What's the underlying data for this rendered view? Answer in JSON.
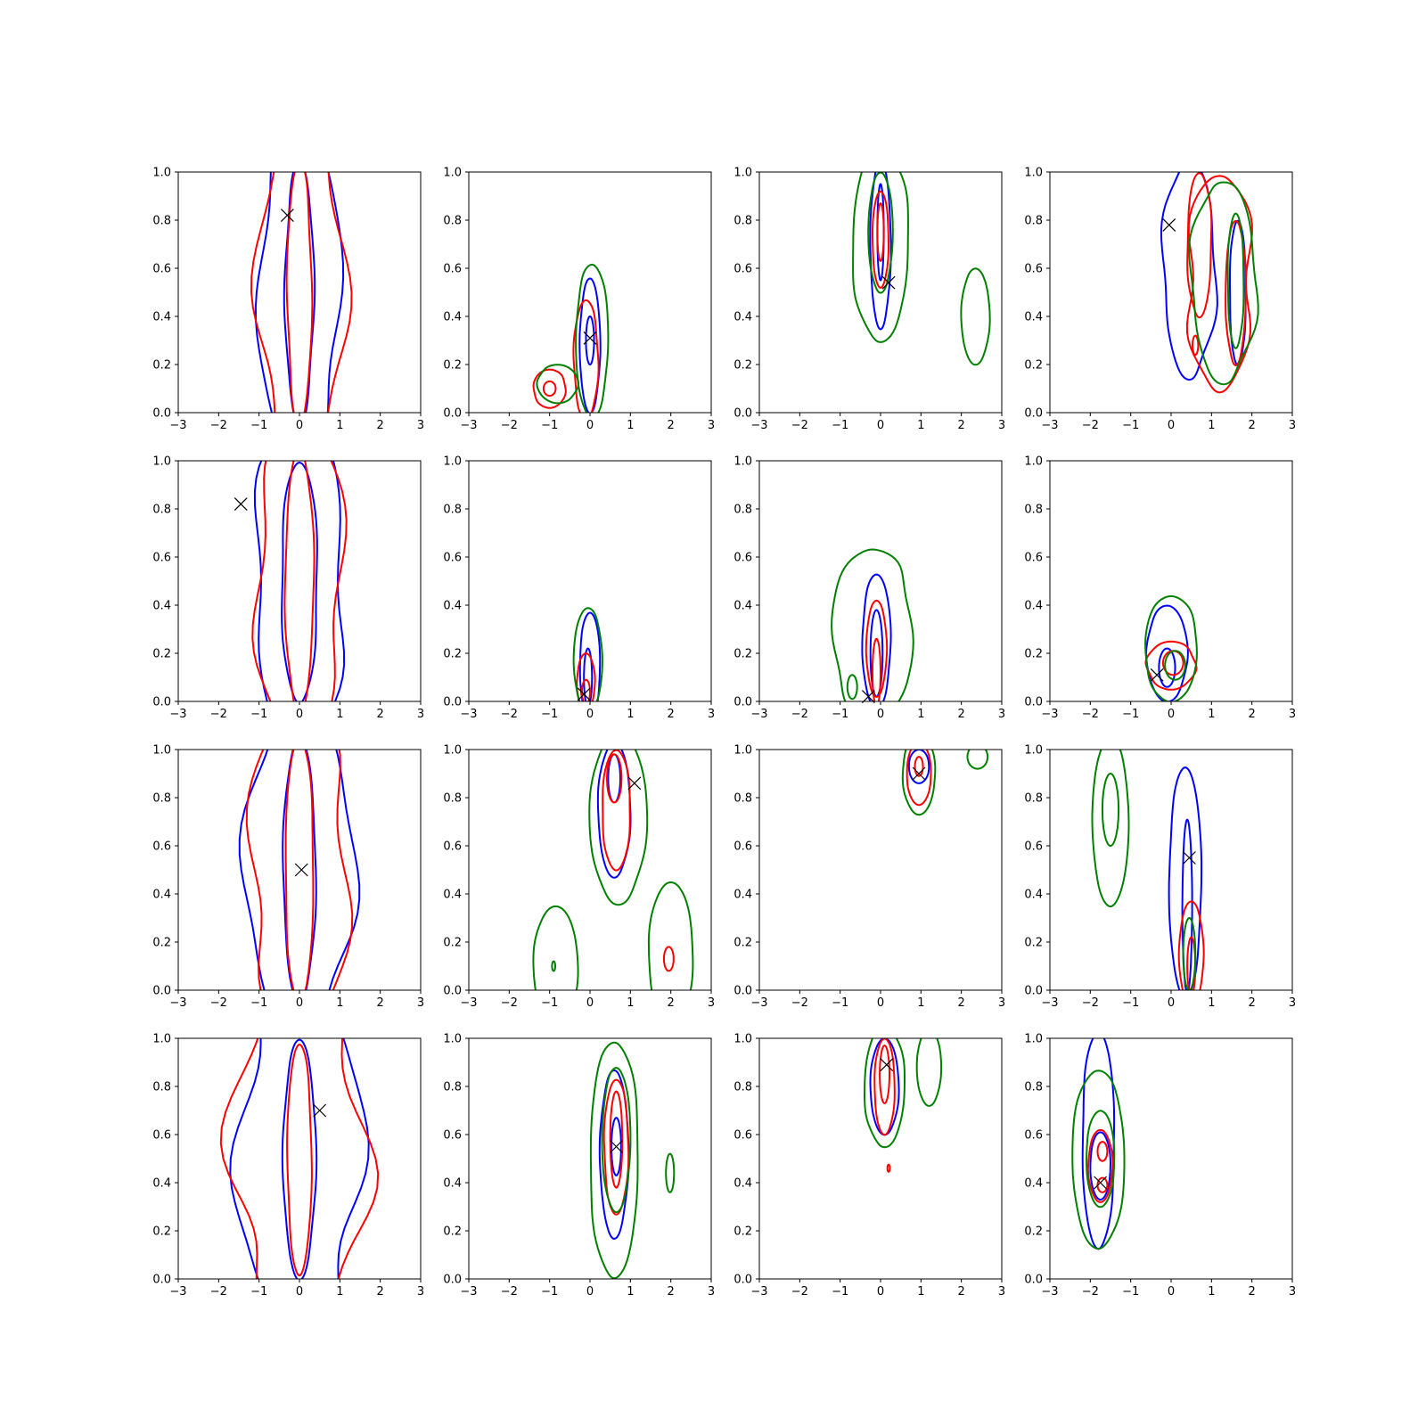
{
  "chart_data": {
    "type": "contour",
    "grid": false,
    "rows": 4,
    "cols": 4,
    "xlim": [
      -3,
      3
    ],
    "ylim": [
      0,
      1
    ],
    "xticks": [
      -3,
      -2,
      -1,
      0,
      1,
      2,
      3
    ],
    "yticks": [
      0.0,
      0.2,
      0.4,
      0.6,
      0.8,
      1.0
    ],
    "xtick_labels": [
      "−3",
      "−2",
      "−1",
      "0",
      "1",
      "2",
      "3"
    ],
    "ytick_labels": [
      "0.0",
      "0.2",
      "0.4",
      "0.6",
      "0.8",
      "1.0"
    ],
    "colors": {
      "blue": "#0000ff",
      "red": "#ff0000",
      "green": "#008000",
      "marker": "#000000"
    },
    "marker_symbol": "x",
    "panels": [
      {
        "row": 0,
        "col": 0,
        "marker": [
          -0.3,
          0.82
        ],
        "contours": [
          {
            "color": "blue",
            "cx": 0.0,
            "cy": 0.5,
            "rx": 1.0,
            "ry": 0.7,
            "wobble": 0.1
          },
          {
            "color": "blue",
            "cx": 0.0,
            "cy": 0.5,
            "rx": 0.35,
            "ry": 0.55,
            "wobble": 0.06
          },
          {
            "color": "red",
            "cx": 0.05,
            "cy": 0.5,
            "rx": 1.05,
            "ry": 0.72,
            "wobble": 0.12
          },
          {
            "color": "red",
            "cx": 0.0,
            "cy": 0.5,
            "rx": 0.3,
            "ry": 0.55,
            "wobble": 0.06
          }
        ]
      },
      {
        "row": 0,
        "col": 1,
        "marker": [
          0.0,
          0.31
        ],
        "contours": [
          {
            "color": "blue",
            "cx": 0.0,
            "cy": 0.28,
            "rx": 0.25,
            "ry": 0.28,
            "wobble": 0.03
          },
          {
            "color": "blue",
            "cx": 0.0,
            "cy": 0.3,
            "rx": 0.1,
            "ry": 0.1,
            "wobble": 0.0
          },
          {
            "color": "red",
            "cx": -0.1,
            "cy": 0.22,
            "rx": 0.3,
            "ry": 0.25,
            "wobble": 0.04
          },
          {
            "color": "red",
            "cx": -1.0,
            "cy": 0.1,
            "rx": 0.4,
            "ry": 0.08,
            "wobble": 0.03
          },
          {
            "color": "red",
            "cx": -1.0,
            "cy": 0.1,
            "rx": 0.15,
            "ry": 0.03,
            "wobble": 0.0
          },
          {
            "color": "green",
            "cx": 0.05,
            "cy": 0.3,
            "rx": 0.4,
            "ry": 0.32,
            "wobble": 0.05
          },
          {
            "color": "green",
            "cx": -0.8,
            "cy": 0.12,
            "rx": 0.5,
            "ry": 0.08,
            "wobble": 0.03
          }
        ]
      },
      {
        "row": 0,
        "col": 2,
        "marker": [
          0.2,
          0.54
        ],
        "contours": [
          {
            "color": "blue",
            "cx": 0.0,
            "cy": 0.7,
            "rx": 0.25,
            "ry": 0.35,
            "wobble": 0.03
          },
          {
            "color": "blue",
            "cx": 0.0,
            "cy": 0.75,
            "rx": 0.08,
            "ry": 0.2,
            "wobble": 0.0
          },
          {
            "color": "red",
            "cx": 0.0,
            "cy": 0.72,
            "rx": 0.2,
            "ry": 0.2,
            "wobble": 0.02
          },
          {
            "color": "red",
            "cx": 0.0,
            "cy": 0.75,
            "rx": 0.08,
            "ry": 0.12,
            "wobble": 0.0
          },
          {
            "color": "green",
            "cx": 0.0,
            "cy": 0.7,
            "rx": 0.7,
            "ry": 0.4,
            "wobble": 0.06
          },
          {
            "color": "green",
            "cx": 0.0,
            "cy": 0.75,
            "rx": 0.3,
            "ry": 0.25,
            "wobble": 0.03
          },
          {
            "color": "green",
            "cx": 2.35,
            "cy": 0.4,
            "rx": 0.35,
            "ry": 0.2,
            "wobble": 0.02
          }
        ]
      },
      {
        "row": 0,
        "col": 3,
        "marker": [
          -0.05,
          0.78
        ],
        "contours": [
          {
            "color": "blue",
            "cx": 0.45,
            "cy": 0.6,
            "rx": 0.65,
            "ry": 0.45,
            "wobble": 0.1
          },
          {
            "color": "blue",
            "cx": 1.65,
            "cy": 0.5,
            "rx": 0.2,
            "ry": 0.3,
            "wobble": 0.03
          },
          {
            "color": "red",
            "cx": 1.2,
            "cy": 0.55,
            "rx": 0.8,
            "ry": 0.45,
            "wobble": 0.12
          },
          {
            "color": "red",
            "cx": 0.7,
            "cy": 0.7,
            "rx": 0.3,
            "ry": 0.3,
            "wobble": 0.05
          },
          {
            "color": "red",
            "cx": 1.6,
            "cy": 0.5,
            "rx": 0.25,
            "ry": 0.3,
            "wobble": 0.04
          },
          {
            "color": "red",
            "cx": 0.6,
            "cy": 0.28,
            "rx": 0.07,
            "ry": 0.04,
            "wobble": 0.0
          },
          {
            "color": "green",
            "cx": 1.3,
            "cy": 0.55,
            "rx": 0.8,
            "ry": 0.42,
            "wobble": 0.1
          },
          {
            "color": "green",
            "cx": 1.6,
            "cy": 0.55,
            "rx": 0.2,
            "ry": 0.28,
            "wobble": 0.03
          }
        ]
      },
      {
        "row": 1,
        "col": 0,
        "marker": [
          -1.45,
          0.82
        ],
        "contours": [
          {
            "color": "blue",
            "cx": 0.0,
            "cy": 0.5,
            "rx": 1.1,
            "ry": 0.72,
            "wobble": 0.12
          },
          {
            "color": "blue",
            "cx": 0.0,
            "cy": 0.5,
            "rx": 0.45,
            "ry": 0.5,
            "wobble": 0.05
          },
          {
            "color": "red",
            "cx": 0.0,
            "cy": 0.5,
            "rx": 1.05,
            "ry": 0.72,
            "wobble": 0.12
          },
          {
            "color": "red",
            "cx": 0.0,
            "cy": 0.5,
            "rx": 0.35,
            "ry": 0.55,
            "wobble": 0.05
          }
        ]
      },
      {
        "row": 1,
        "col": 1,
        "marker": [
          -0.15,
          0.03
        ],
        "contours": [
          {
            "color": "blue",
            "cx": 0.0,
            "cy": 0.15,
            "rx": 0.25,
            "ry": 0.22,
            "wobble": 0.02
          },
          {
            "color": "blue",
            "cx": -0.05,
            "cy": 0.1,
            "rx": 0.1,
            "ry": 0.12,
            "wobble": 0.0
          },
          {
            "color": "red",
            "cx": -0.1,
            "cy": 0.08,
            "rx": 0.22,
            "ry": 0.12,
            "wobble": 0.02
          },
          {
            "color": "red",
            "cx": -0.1,
            "cy": 0.04,
            "rx": 0.1,
            "ry": 0.05,
            "wobble": 0.0
          },
          {
            "color": "green",
            "cx": -0.05,
            "cy": 0.17,
            "rx": 0.35,
            "ry": 0.22,
            "wobble": 0.03
          }
        ]
      },
      {
        "row": 1,
        "col": 2,
        "marker": [
          -0.3,
          0.02
        ],
        "contours": [
          {
            "color": "blue",
            "cx": -0.1,
            "cy": 0.25,
            "rx": 0.35,
            "ry": 0.28,
            "wobble": 0.03
          },
          {
            "color": "blue",
            "cx": -0.1,
            "cy": 0.2,
            "rx": 0.15,
            "ry": 0.18,
            "wobble": 0.0
          },
          {
            "color": "red",
            "cx": -0.1,
            "cy": 0.22,
            "rx": 0.25,
            "ry": 0.2,
            "wobble": 0.02
          },
          {
            "color": "red",
            "cx": -0.1,
            "cy": 0.12,
            "rx": 0.1,
            "ry": 0.14,
            "wobble": 0.0
          },
          {
            "color": "green",
            "cx": -0.2,
            "cy": 0.28,
            "rx": 1.0,
            "ry": 0.36,
            "wobble": 0.08
          },
          {
            "color": "green",
            "cx": -0.7,
            "cy": 0.06,
            "rx": 0.12,
            "ry": 0.05,
            "wobble": 0.0
          }
        ]
      },
      {
        "row": 1,
        "col": 3,
        "marker": [
          -0.35,
          0.11
        ],
        "contours": [
          {
            "color": "blue",
            "cx": -0.1,
            "cy": 0.2,
            "rx": 0.5,
            "ry": 0.2,
            "wobble": 0.03
          },
          {
            "color": "blue",
            "cx": -0.1,
            "cy": 0.14,
            "rx": 0.2,
            "ry": 0.08,
            "wobble": 0.0
          },
          {
            "color": "red",
            "cx": 0.0,
            "cy": 0.15,
            "rx": 0.6,
            "ry": 0.1,
            "wobble": 0.04
          },
          {
            "color": "red",
            "cx": 0.05,
            "cy": 0.16,
            "rx": 0.25,
            "ry": 0.05,
            "wobble": 0.0
          },
          {
            "color": "green",
            "cx": 0.0,
            "cy": 0.22,
            "rx": 0.65,
            "ry": 0.22,
            "wobble": 0.04
          },
          {
            "color": "green",
            "cx": 0.1,
            "cy": 0.15,
            "rx": 0.25,
            "ry": 0.06,
            "wobble": 0.0
          }
        ]
      },
      {
        "row": 2,
        "col": 0,
        "marker": [
          0.05,
          0.5
        ],
        "contours": [
          {
            "color": "blue",
            "cx": 0.0,
            "cy": 0.5,
            "rx": 1.3,
            "ry": 0.72,
            "wobble": 0.12
          },
          {
            "color": "blue",
            "cx": 0.0,
            "cy": 0.5,
            "rx": 0.4,
            "ry": 0.55,
            "wobble": 0.04
          },
          {
            "color": "red",
            "cx": 0.0,
            "cy": 0.5,
            "rx": 1.2,
            "ry": 0.72,
            "wobble": 0.12
          },
          {
            "color": "red",
            "cx": 0.0,
            "cy": 0.5,
            "rx": 0.35,
            "ry": 0.55,
            "wobble": 0.04
          }
        ]
      },
      {
        "row": 2,
        "col": 1,
        "marker": [
          1.1,
          0.86
        ],
        "contours": [
          {
            "color": "blue",
            "cx": 0.6,
            "cy": 0.75,
            "rx": 0.4,
            "ry": 0.28,
            "wobble": 0.03
          },
          {
            "color": "blue",
            "cx": 0.6,
            "cy": 0.88,
            "rx": 0.15,
            "ry": 0.1,
            "wobble": 0.0
          },
          {
            "color": "red",
            "cx": 0.65,
            "cy": 0.75,
            "rx": 0.35,
            "ry": 0.25,
            "wobble": 0.03
          },
          {
            "color": "red",
            "cx": 0.6,
            "cy": 0.88,
            "rx": 0.18,
            "ry": 0.1,
            "wobble": 0.0
          },
          {
            "color": "red",
            "cx": 1.95,
            "cy": 0.13,
            "rx": 0.12,
            "ry": 0.05,
            "wobble": 0.0
          },
          {
            "color": "green",
            "cx": 0.7,
            "cy": 0.72,
            "rx": 0.7,
            "ry": 0.36,
            "wobble": 0.05
          },
          {
            "color": "green",
            "cx": -0.85,
            "cy": 0.1,
            "rx": 0.55,
            "ry": 0.25,
            "wobble": 0.02
          },
          {
            "color": "green",
            "cx": 2.0,
            "cy": 0.15,
            "rx": 0.55,
            "ry": 0.3,
            "wobble": 0.02
          },
          {
            "color": "green",
            "cx": -0.9,
            "cy": 0.1,
            "rx": 0.04,
            "ry": 0.02,
            "wobble": 0.0
          }
        ]
      },
      {
        "row": 2,
        "col": 2,
        "marker": [
          0.95,
          0.9
        ],
        "contours": [
          {
            "color": "blue",
            "cx": 0.95,
            "cy": 0.93,
            "rx": 0.25,
            "ry": 0.07,
            "wobble": 0.01
          },
          {
            "color": "red",
            "cx": 0.95,
            "cy": 0.9,
            "rx": 0.3,
            "ry": 0.13,
            "wobble": 0.01
          },
          {
            "color": "red",
            "cx": 0.95,
            "cy": 0.93,
            "rx": 0.1,
            "ry": 0.04,
            "wobble": 0.0
          },
          {
            "color": "green",
            "cx": 0.95,
            "cy": 0.9,
            "rx": 0.4,
            "ry": 0.17,
            "wobble": 0.02
          },
          {
            "color": "green",
            "cx": 2.4,
            "cy": 0.97,
            "rx": 0.25,
            "ry": 0.05,
            "wobble": 0.0
          }
        ]
      },
      {
        "row": 3,
        "col": 3,
        "marker": [
          -1.75,
          0.4
        ],
        "contours": [
          {
            "color": "blue",
            "cx": -1.8,
            "cy": 0.58,
            "rx": 0.4,
            "ry": 0.45,
            "wobble": 0.04
          },
          {
            "color": "blue",
            "cx": -1.75,
            "cy": 0.47,
            "rx": 0.25,
            "ry": 0.14,
            "wobble": 0.01
          },
          {
            "color": "red",
            "cx": -1.75,
            "cy": 0.47,
            "rx": 0.3,
            "ry": 0.15,
            "wobble": 0.02
          },
          {
            "color": "red",
            "cx": -1.7,
            "cy": 0.53,
            "rx": 0.12,
            "ry": 0.04,
            "wobble": 0.0
          },
          {
            "color": "red",
            "cx": -1.7,
            "cy": 0.39,
            "rx": 0.12,
            "ry": 0.03,
            "wobble": 0.0
          },
          {
            "color": "green",
            "cx": -1.8,
            "cy": 0.5,
            "rx": 0.65,
            "ry": 0.37,
            "wobble": 0.04
          },
          {
            "color": "green",
            "cx": -1.75,
            "cy": 0.5,
            "rx": 0.35,
            "ry": 0.2,
            "wobble": 0.02
          }
        ]
      },
      {
        "row": 2,
        "col": 3,
        "marker": [
          0.45,
          0.55
        ],
        "contours": [
          {
            "color": "blue",
            "cx": 0.35,
            "cy": 0.45,
            "rx": 0.4,
            "ry": 0.48,
            "wobble": 0.03
          },
          {
            "color": "blue",
            "cx": 0.4,
            "cy": 0.35,
            "rx": 0.12,
            "ry": 0.36,
            "wobble": 0.01
          },
          {
            "color": "red",
            "cx": 0.5,
            "cy": 0.15,
            "rx": 0.3,
            "ry": 0.22,
            "wobble": 0.02
          },
          {
            "color": "red",
            "cx": 0.5,
            "cy": 0.1,
            "rx": 0.1,
            "ry": 0.12,
            "wobble": 0.0
          },
          {
            "color": "green",
            "cx": -1.5,
            "cy": 0.7,
            "rx": 0.45,
            "ry": 0.35,
            "wobble": 0.02
          },
          {
            "color": "green",
            "cx": -1.5,
            "cy": 0.75,
            "rx": 0.2,
            "ry": 0.15,
            "wobble": 0.0
          },
          {
            "color": "green",
            "cx": 0.45,
            "cy": 0.15,
            "rx": 0.15,
            "ry": 0.15,
            "wobble": 0.0
          }
        ]
      },
      {
        "row": 3,
        "col": 0,
        "marker": [
          0.5,
          0.7
        ],
        "contours": [
          {
            "color": "blue",
            "cx": 0.0,
            "cy": 0.5,
            "rx": 1.5,
            "ry": 0.72,
            "wobble": 0.14
          },
          {
            "color": "blue",
            "cx": 0.0,
            "cy": 0.5,
            "rx": 0.4,
            "ry": 0.5,
            "wobble": 0.04
          },
          {
            "color": "red",
            "cx": 0.0,
            "cy": 0.5,
            "rx": 1.6,
            "ry": 0.72,
            "wobble": 0.15
          },
          {
            "color": "red",
            "cx": 0.0,
            "cy": 0.5,
            "rx": 0.3,
            "ry": 0.48,
            "wobble": 0.04
          }
        ]
      },
      {
        "row": 3,
        "col": 1,
        "marker": [
          0.65,
          0.55
        ],
        "contours": [
          {
            "color": "blue",
            "cx": 0.6,
            "cy": 0.52,
            "rx": 0.35,
            "ry": 0.35,
            "wobble": 0.03
          },
          {
            "color": "blue",
            "cx": 0.65,
            "cy": 0.55,
            "rx": 0.12,
            "ry": 0.12,
            "wobble": 0.0
          },
          {
            "color": "red",
            "cx": 0.65,
            "cy": 0.55,
            "rx": 0.3,
            "ry": 0.28,
            "wobble": 0.03
          },
          {
            "color": "red",
            "cx": 0.65,
            "cy": 0.58,
            "rx": 0.15,
            "ry": 0.2,
            "wobble": 0.01
          },
          {
            "color": "green",
            "cx": 0.6,
            "cy": 0.5,
            "rx": 0.6,
            "ry": 0.49,
            "wobble": 0.05
          },
          {
            "color": "green",
            "cx": 0.65,
            "cy": 0.58,
            "rx": 0.35,
            "ry": 0.3,
            "wobble": 0.03
          },
          {
            "color": "green",
            "cx": 1.98,
            "cy": 0.44,
            "rx": 0.1,
            "ry": 0.08,
            "wobble": 0.0
          }
        ]
      },
      {
        "row": 3,
        "col": 2,
        "marker": [
          0.15,
          0.89
        ],
        "contours": [
          {
            "color": "blue",
            "cx": 0.1,
            "cy": 0.8,
            "rx": 0.35,
            "ry": 0.2,
            "wobble": 0.02
          },
          {
            "color": "red",
            "cx": 0.1,
            "cy": 0.8,
            "rx": 0.25,
            "ry": 0.2,
            "wobble": 0.02
          },
          {
            "color": "red",
            "cx": 0.1,
            "cy": 0.85,
            "rx": 0.12,
            "ry": 0.12,
            "wobble": 0.0
          },
          {
            "color": "red",
            "cx": 0.2,
            "cy": 0.46,
            "rx": 0.03,
            "ry": 0.015,
            "wobble": 0.0
          },
          {
            "color": "green",
            "cx": 0.1,
            "cy": 0.8,
            "rx": 0.5,
            "ry": 0.25,
            "wobble": 0.04
          },
          {
            "color": "green",
            "cx": 1.2,
            "cy": 0.88,
            "rx": 0.3,
            "ry": 0.16,
            "wobble": 0.02
          }
        ]
      }
    ]
  }
}
